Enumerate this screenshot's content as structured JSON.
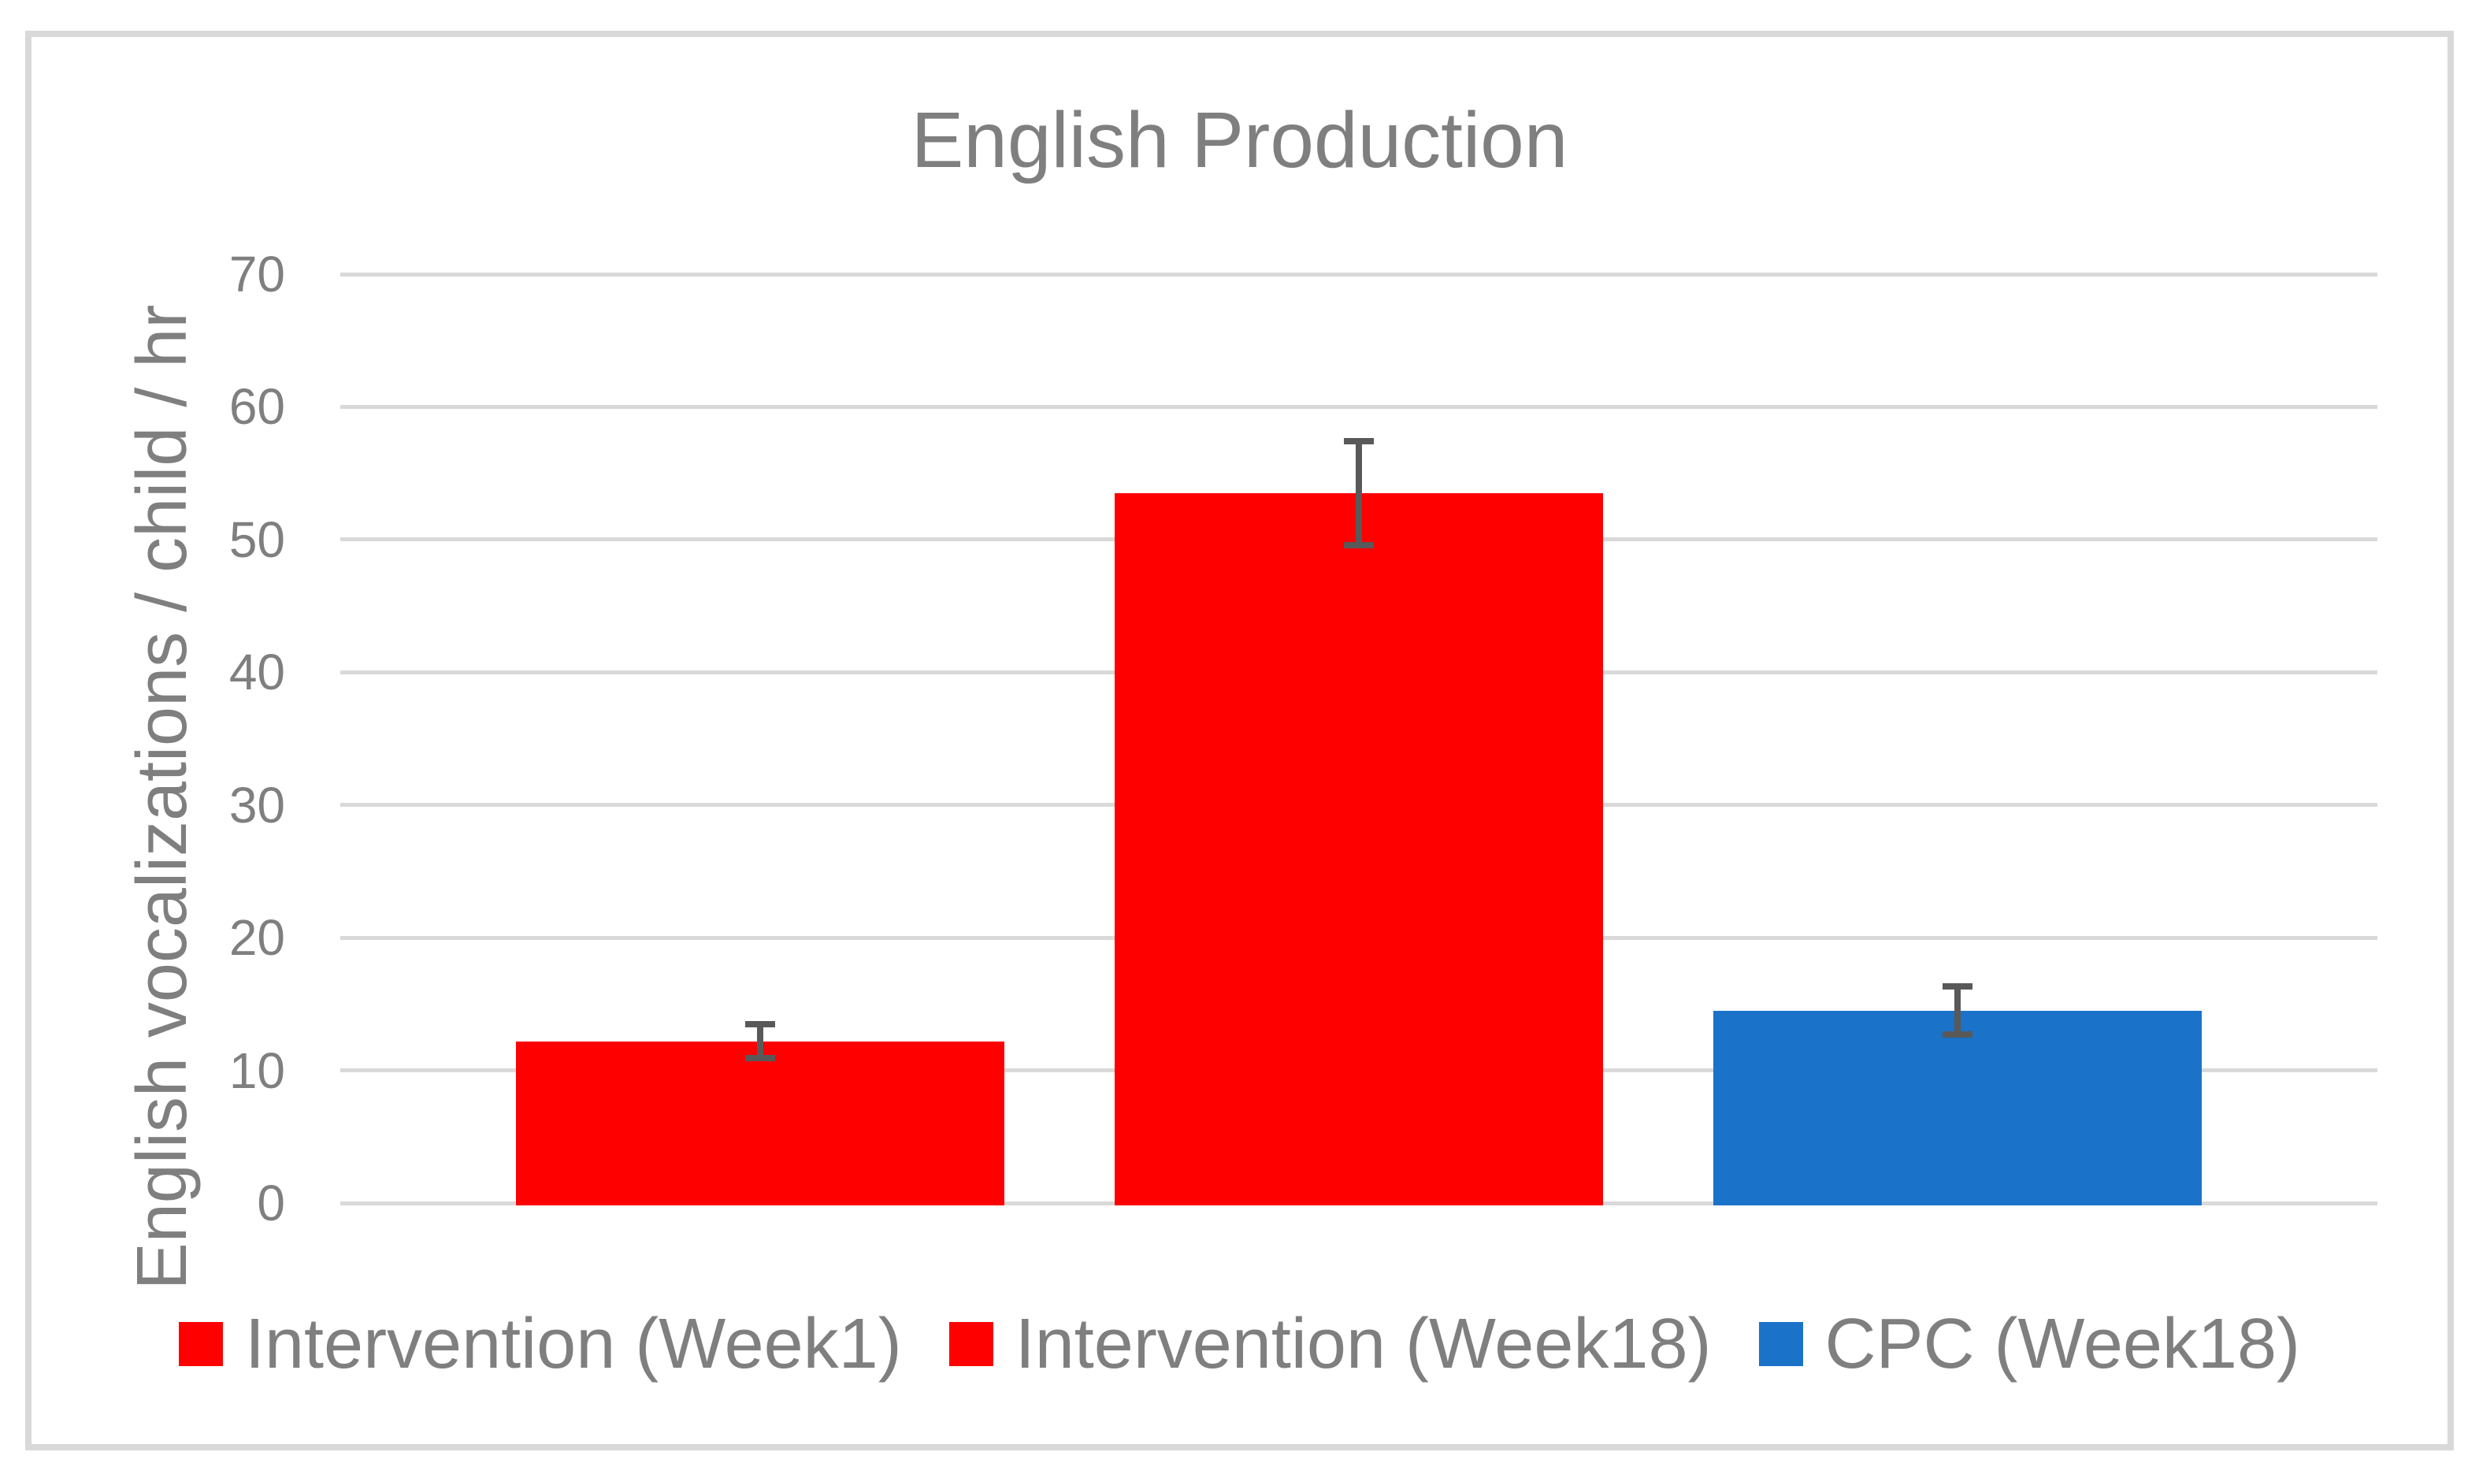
{
  "title": "English Production",
  "colors": {
    "red": "#FF0000",
    "blue": "#1A73C8",
    "text_gray": "#7F7F7F",
    "gridline_gray": "#D9D9D9",
    "border_gray": "#D9D9D9",
    "error_bar_gray": "#595959"
  },
  "chart_data": {
    "type": "bar",
    "title": "English Production",
    "xlabel": "",
    "ylabel": "English vocalizations / child / hr",
    "ylim": [
      0,
      70
    ],
    "yticks": [
      0,
      10,
      20,
      30,
      40,
      50,
      60,
      70
    ],
    "grid": true,
    "legend_position": "bottom",
    "categories": [
      ""
    ],
    "series": [
      {
        "name": "Intervention (Week1)",
        "value": 12.2,
        "error": 1.3,
        "color": "#FF0000"
      },
      {
        "name": "Intervention (Week18)",
        "value": 53.5,
        "error": 3.9,
        "color": "#FF0000"
      },
      {
        "name": "CPC (Week18)",
        "value": 14.5,
        "error": 1.8,
        "color": "#1A73C8"
      }
    ]
  }
}
